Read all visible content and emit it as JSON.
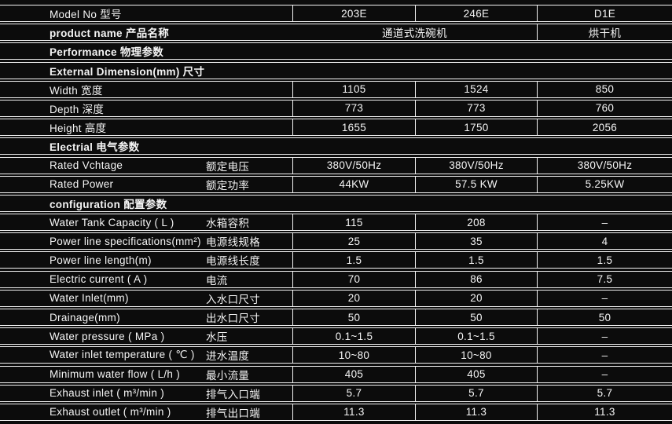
{
  "colors": {
    "background": "#0c0c0c",
    "line": "#f4f4f4",
    "text": "#f5f5f5"
  },
  "table": {
    "rows": [
      {
        "type": "model",
        "label": "Model No 型号",
        "values": [
          "203E",
          "246E",
          "D1E"
        ]
      },
      {
        "type": "product",
        "label": "product name 产品名称",
        "merged": "通道式洗碗机",
        "last": "烘干机"
      },
      {
        "type": "section",
        "label": "Performance 物理参数"
      },
      {
        "type": "section",
        "label": "External Dimension(mm) 尺寸"
      },
      {
        "type": "data1",
        "label": "Width 宽度",
        "values": [
          "1105",
          "1524",
          "850"
        ]
      },
      {
        "type": "data1",
        "label": "Depth 深度",
        "values": [
          "773",
          "773",
          "760"
        ]
      },
      {
        "type": "data1",
        "label": "Height 高度",
        "values": [
          "1655",
          "1750",
          "2056"
        ]
      },
      {
        "type": "section",
        "label": "Electrial 电气参数"
      },
      {
        "type": "data2",
        "label_en": "Rated Vchtage",
        "label_zh": "额定电压",
        "values": [
          "380V/50Hz",
          "380V/50Hz",
          "380V/50Hz"
        ]
      },
      {
        "type": "data2",
        "label_en": "Rated Power",
        "label_zh": "额定功率",
        "values": [
          "44KW",
          "57.5 KW",
          "5.25KW"
        ]
      },
      {
        "type": "section",
        "label": "configuration 配置参数"
      },
      {
        "type": "data2",
        "label_en": "Water Tank Capacity ( L )",
        "label_zh": "水箱容积",
        "values": [
          "115",
          "208",
          "–"
        ]
      },
      {
        "type": "data2",
        "label_en": "Power line specifications(mm²)",
        "label_zh": "电源线规格",
        "values": [
          "25",
          "35",
          "4"
        ]
      },
      {
        "type": "data2",
        "label_en": "Power line length(m)",
        "label_zh": "电源线长度",
        "values": [
          "1.5",
          "1.5",
          "1.5"
        ]
      },
      {
        "type": "data2",
        "label_en": "Electric current ( A )",
        "label_zh": "电流",
        "values": [
          "70",
          "86",
          "7.5"
        ]
      },
      {
        "type": "data2",
        "label_en": "Water Inlet(mm)",
        "label_zh": "入水口尺寸",
        "values": [
          "20",
          "20",
          "–"
        ]
      },
      {
        "type": "data2",
        "label_en": "Drainage(mm)",
        "label_zh": "出水口尺寸",
        "values": [
          "50",
          "50",
          "50"
        ]
      },
      {
        "type": "data2",
        "label_en": "Water pressure ( MPa )",
        "label_zh": "水压",
        "values": [
          "0.1~1.5",
          "0.1~1.5",
          "–"
        ]
      },
      {
        "type": "data2",
        "label_en": "Water inlet temperature ( ℃ )",
        "label_zh": "进水温度",
        "values": [
          "10~80",
          "10~80",
          "–"
        ]
      },
      {
        "type": "data2",
        "label_en": "Minimum water flow ( L/h )",
        "label_zh": "最小流量",
        "values": [
          "405",
          "405",
          "–"
        ]
      },
      {
        "type": "data2",
        "label_en": "Exhaust inlet ( m³/min )",
        "label_zh": "排气入口端",
        "values": [
          "5.7",
          "5.7",
          "5.7"
        ]
      },
      {
        "type": "data2",
        "label_en": "Exhaust outlet ( m³/min )",
        "label_zh": "排气出口端",
        "values": [
          "11.3",
          "11.3",
          "11.3"
        ]
      }
    ]
  }
}
